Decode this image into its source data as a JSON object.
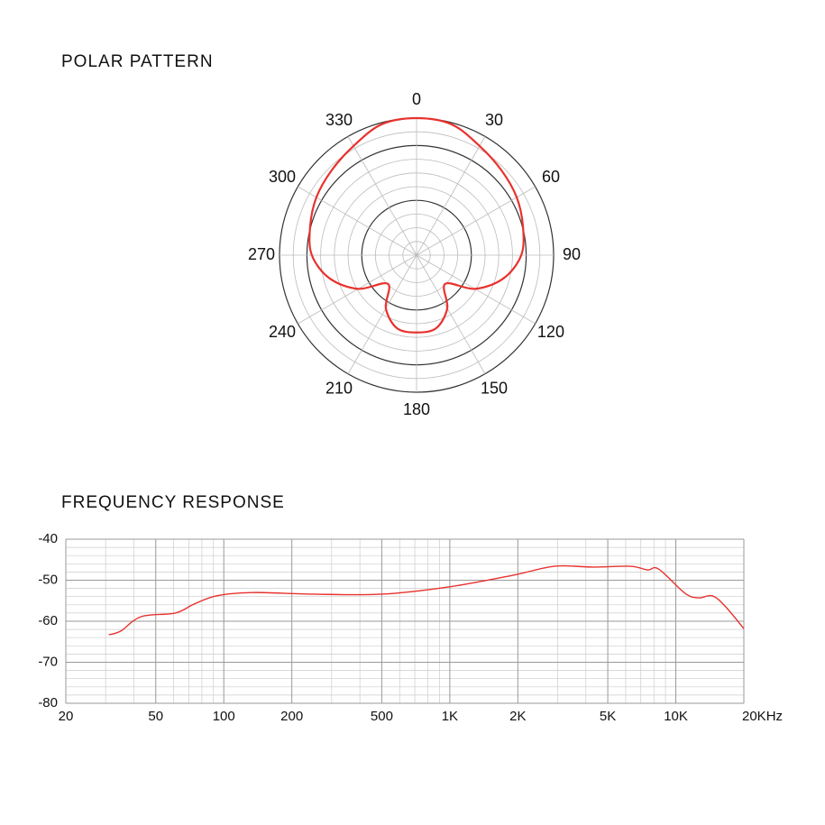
{
  "chart_data": [
    {
      "type": "polar",
      "title": "POLAR PATTERN",
      "theta": [
        0,
        15,
        30,
        45,
        60,
        75,
        90,
        105,
        120,
        135,
        150,
        165,
        180,
        195,
        210,
        225,
        240,
        255,
        270,
        285,
        300,
        315,
        330,
        345
      ],
      "values": [
        0,
        -0.3,
        -2.0,
        -3.1,
        -3.9,
        -4.9,
        -5.9,
        -8.6,
        -12.7,
        -17.6,
        -13.8,
        -11.2,
        -10.9,
        -11.2,
        -13.8,
        -17.6,
        -12.7,
        -8.6,
        -5.9,
        -4.9,
        -3.9,
        -3.1,
        -2.0,
        -0.3
      ],
      "color": "#e8322e",
      "rlim": [
        -25,
        0
      ],
      "rticks": [
        -22.5,
        -20,
        -17.5,
        -15,
        -12.5,
        -10,
        -7.5,
        -5,
        -2.5,
        0
      ],
      "major_rticks": [
        -15,
        -5,
        0
      ],
      "thetaticks": [
        0,
        30,
        60,
        90,
        120,
        150,
        180,
        210,
        240,
        270,
        300,
        330
      ]
    },
    {
      "type": "line",
      "title": "FREQUENCY RESPONSE",
      "xscale": "log",
      "x": [
        31,
        35,
        43,
        61,
        74,
        93,
        134,
        244,
        500,
        1000,
        1900,
        2900,
        4300,
        6300,
        7500,
        8400,
        11000,
        12600,
        14500,
        16500,
        20000
      ],
      "values": [
        -63.3,
        -62.4,
        -58.9,
        -58,
        -55.8,
        -53.8,
        -53,
        -53.4,
        -53.4,
        -51.6,
        -48.8,
        -46.6,
        -46.8,
        -46.6,
        -47.5,
        -47.3,
        -53.2,
        -54.3,
        -53.8,
        -56.3,
        -61.8
      ],
      "color": "#e8322e",
      "xlim": [
        20,
        20000
      ],
      "ylim": [
        -80,
        -40
      ],
      "xticks": [
        20,
        50,
        100,
        200,
        500,
        {
          "value": 1000,
          "label": "1K"
        },
        {
          "value": 2000,
          "label": "2K"
        },
        {
          "value": 5000,
          "label": "5K"
        },
        {
          "value": 10000,
          "label": "10K"
        },
        {
          "value": 20000,
          "label": "20KHz"
        }
      ],
      "yticks": [
        -40,
        -50,
        -60,
        -70,
        -80
      ],
      "x_minor_grid": [
        30,
        40,
        60,
        70,
        80,
        90,
        300,
        400,
        600,
        700,
        800,
        900,
        3000,
        4000,
        6000,
        7000,
        8000,
        9000
      ],
      "y_minor_grid": [
        -42,
        -44,
        -46,
        -48,
        -52,
        -54,
        -56,
        -58,
        -62,
        -64,
        -66,
        -68,
        -72,
        -74,
        -76,
        -78
      ],
      "grid": true
    }
  ]
}
